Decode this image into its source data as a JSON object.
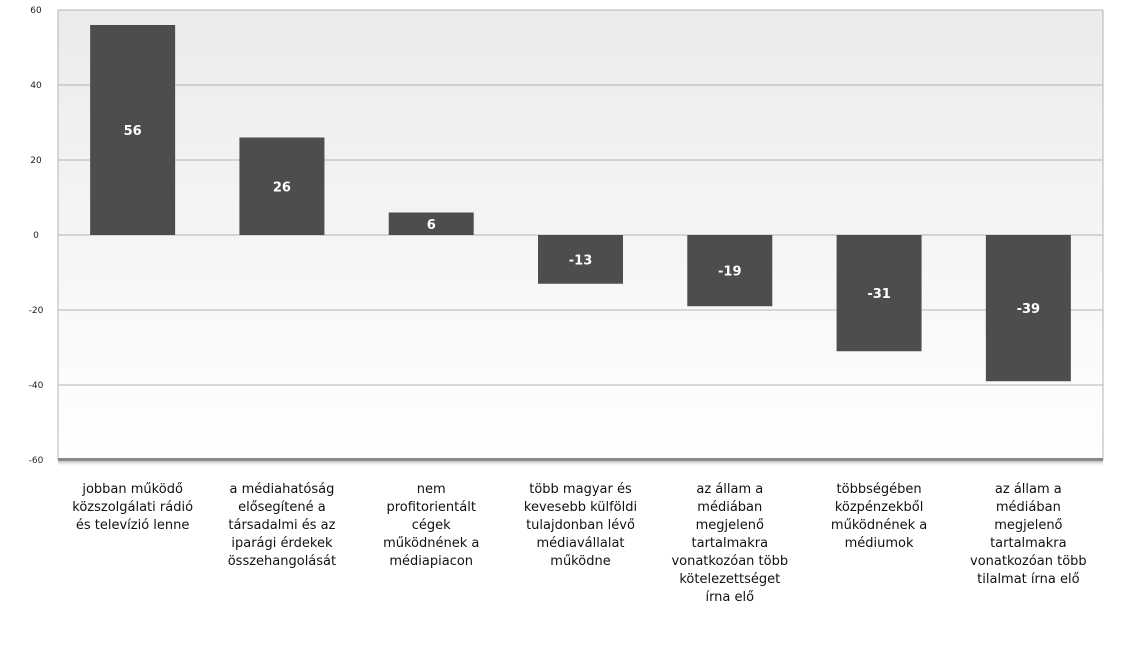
{
  "chart_data": {
    "type": "bar",
    "title": "",
    "xlabel": "",
    "ylabel": "",
    "ylim": [
      -60,
      60
    ],
    "yticks": [
      60,
      40,
      20,
      0,
      -20,
      -40,
      -60
    ],
    "grid": true,
    "legend": "none",
    "categories": [
      [
        "jobban működő",
        "közszolgálati rádió",
        "és televízió lenne"
      ],
      [
        "a médiahatóság",
        "elősegítené a",
        "társadalmi és az",
        "iparági érdekek",
        "összehangolását"
      ],
      [
        "nem",
        "profitorientált",
        "cégek",
        "működnének a",
        "médiapiacon"
      ],
      [
        "több magyar és",
        "kevesebb külföldi",
        "tulajdonban lévő",
        "médiavállalat",
        "működne"
      ],
      [
        "az állam a",
        "médiában",
        "megjelenő",
        "tartalmakra",
        "vonatkozóan több",
        "kötelezettséget",
        "írna elő"
      ],
      [
        "többségében",
        "közpénzekből",
        "működnének a",
        "médiumok"
      ],
      [
        "az állam a",
        "médiában",
        "megjelenő",
        "tartalmakra",
        "vonatkozóan több",
        "tilalmat írna elő"
      ]
    ],
    "values": [
      56,
      26,
      6,
      -13,
      -19,
      -31,
      -39
    ],
    "data_labels": [
      "56",
      "26",
      "6",
      "-13",
      "-19",
      "-31",
      "-39"
    ],
    "colors": {
      "bar": "#4d4d4d",
      "bar_label": "#ffffff",
      "plot_top": "#ebebeb",
      "plot_bottom": "#ffffff",
      "gridline": "#b4b4b4",
      "axis_shadow": "#8c8c8c"
    }
  }
}
